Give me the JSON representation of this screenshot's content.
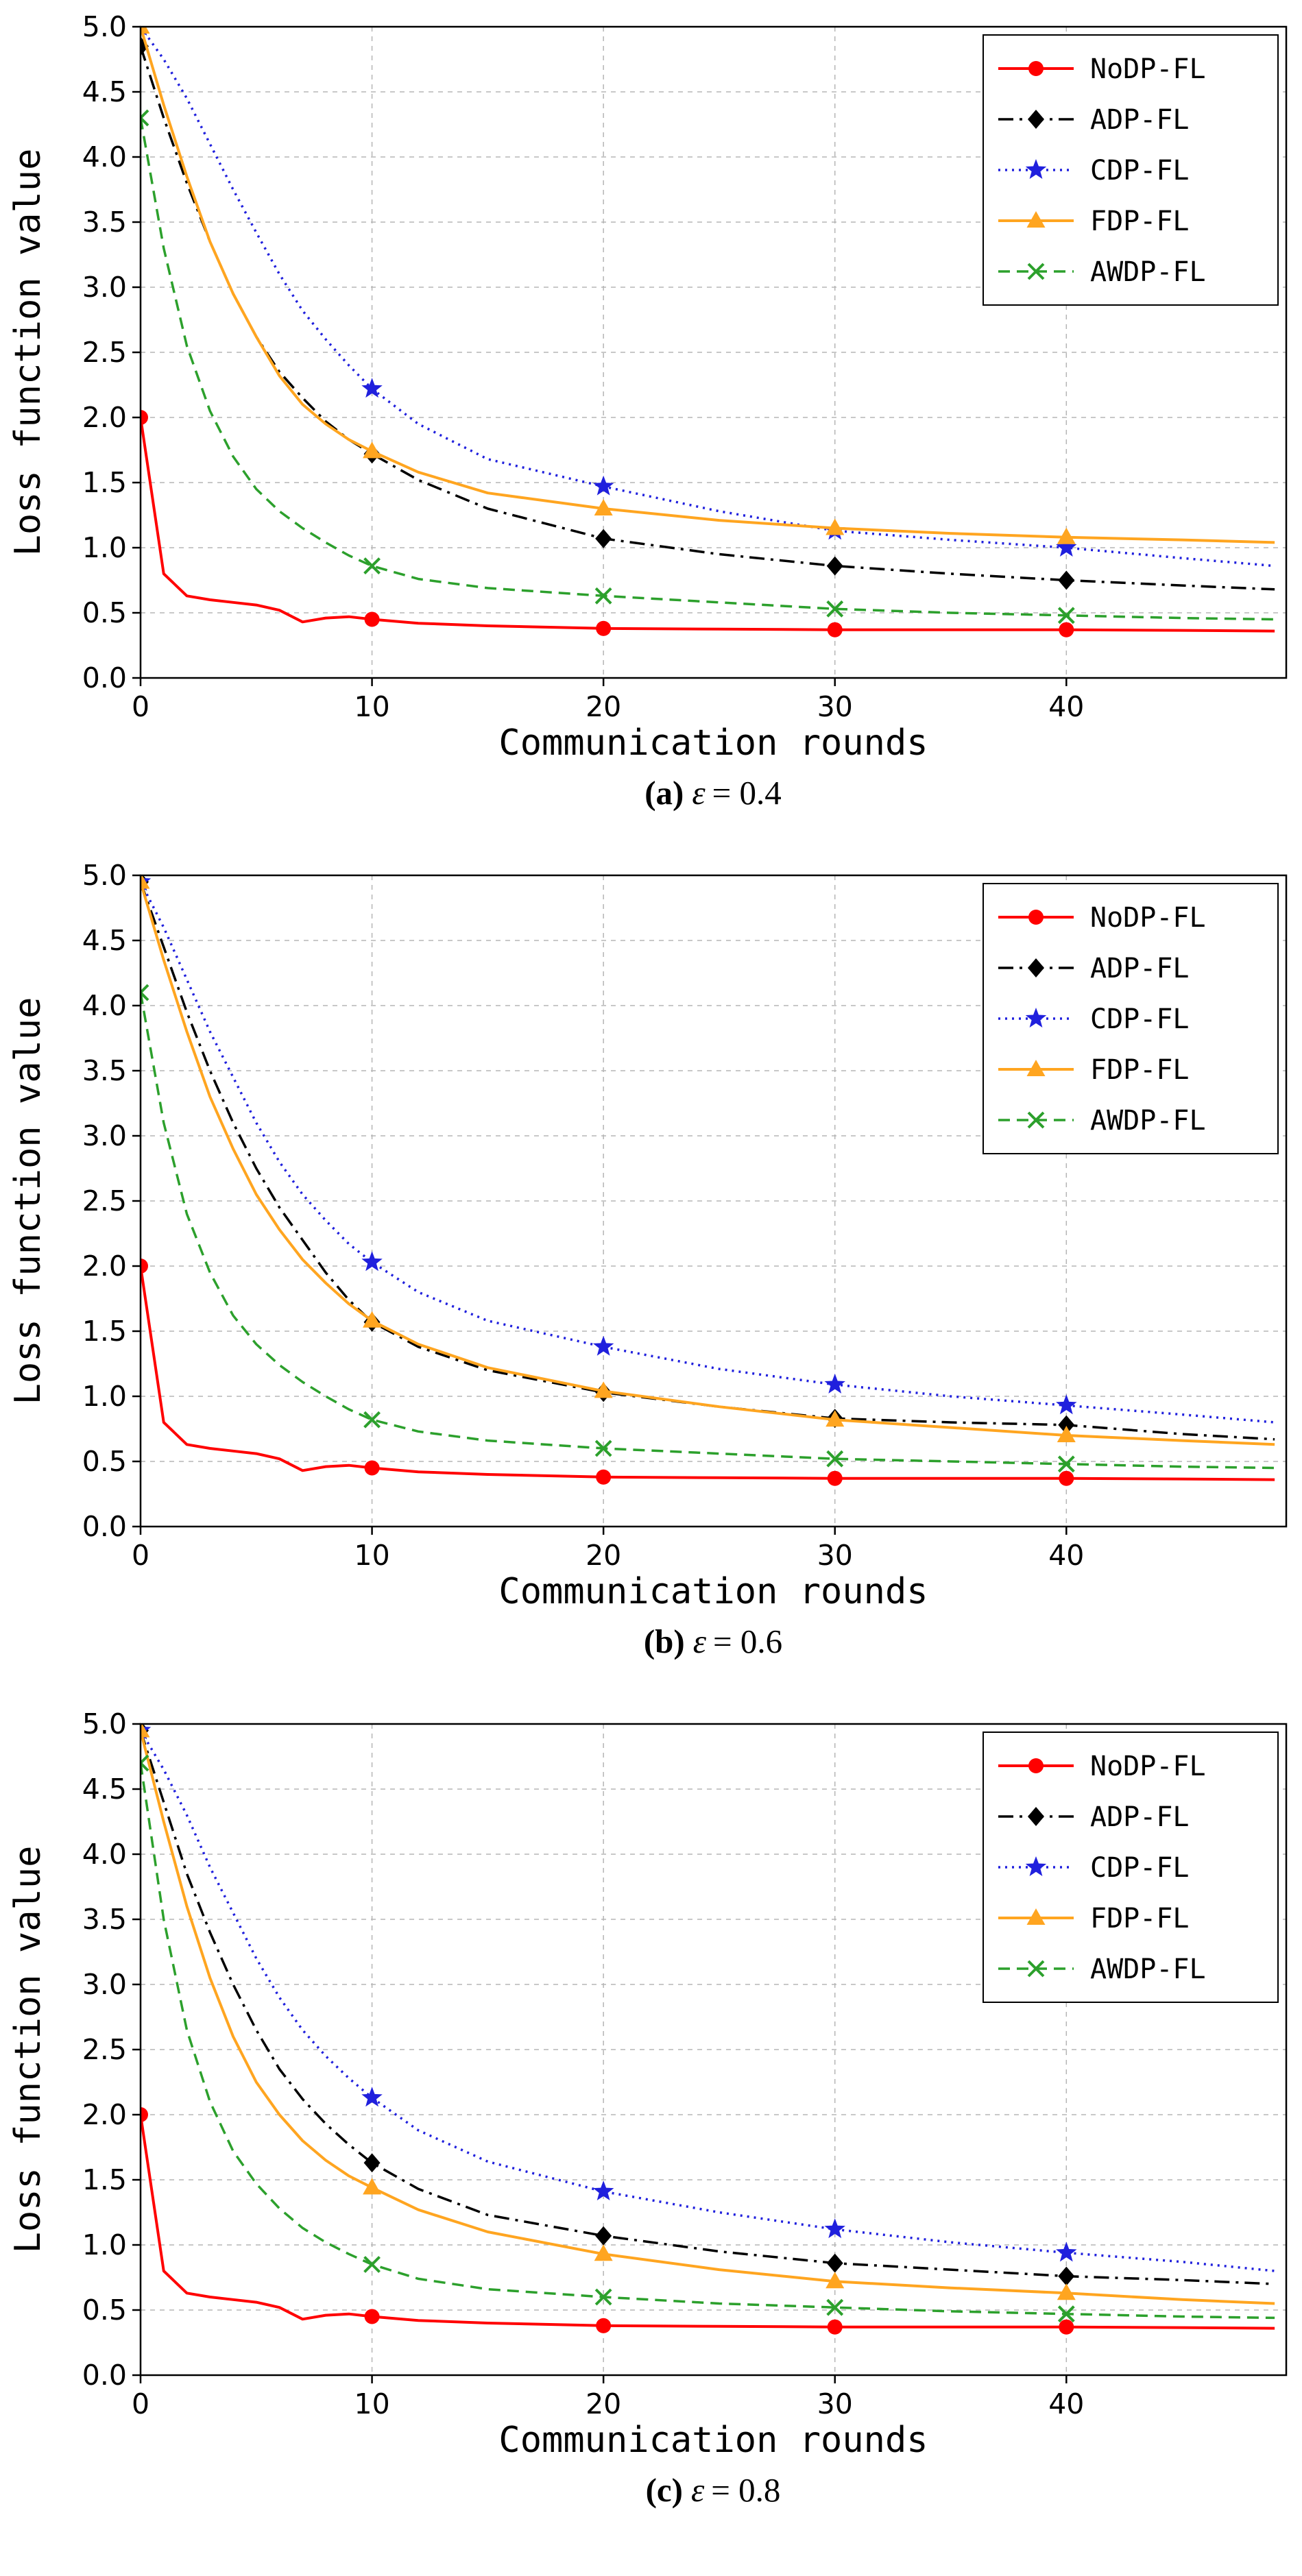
{
  "page": {
    "background": "#ffffff"
  },
  "chart_data": [
    {
      "type": "line",
      "caption_label": "(a)",
      "caption_symbol": "ε",
      "caption_eq": "= 0.4",
      "xlabel": "Communication rounds",
      "ylabel": "Loss function value",
      "xlim": [
        0,
        49.5
      ],
      "ylim": [
        0,
        5
      ],
      "xticks": [
        0,
        10,
        20,
        30,
        40
      ],
      "xtick_labels": [
        "0",
        "10",
        "20",
        "30",
        "40"
      ],
      "yticks": [
        0,
        0.5,
        1,
        1.5,
        2,
        2.5,
        3,
        3.5,
        4,
        4.5,
        5
      ],
      "ytick_labels": [
        "0.0",
        "0.5",
        "1.0",
        "1.5",
        "2.0",
        "2.5",
        "3.0",
        "3.5",
        "4.0",
        "4.5",
        "5.0"
      ],
      "grid": true,
      "grid_color": "#b5b5b5",
      "legend_position": "upper right",
      "marker_x": [
        0,
        10,
        20,
        30,
        40
      ],
      "x": [
        0,
        1,
        2,
        3,
        4,
        5,
        6,
        7,
        8,
        9,
        10,
        12,
        15,
        20,
        25,
        30,
        35,
        40,
        45,
        49
      ],
      "series": [
        {
          "name": "NoDP-FL",
          "color": "#ff0000",
          "linestyle": "solid",
          "marker": "circle",
          "values": [
            2.0,
            0.8,
            0.63,
            0.6,
            0.58,
            0.56,
            0.52,
            0.43,
            0.46,
            0.47,
            0.45,
            0.42,
            0.4,
            0.38,
            0.375,
            0.37,
            0.37,
            0.37,
            0.365,
            0.36
          ]
        },
        {
          "name": "ADP-FL",
          "color": "#000000",
          "linestyle": "dashdot",
          "marker": "diamond",
          "values": [
            4.85,
            4.3,
            3.8,
            3.35,
            2.95,
            2.62,
            2.35,
            2.15,
            1.97,
            1.83,
            1.72,
            1.52,
            1.3,
            1.07,
            0.95,
            0.86,
            0.8,
            0.75,
            0.71,
            0.68
          ]
        },
        {
          "name": "CDP-FL",
          "color": "#2020dd",
          "linestyle": "dotted",
          "marker": "star",
          "values": [
            5.0,
            4.75,
            4.45,
            4.1,
            3.75,
            3.42,
            3.1,
            2.82,
            2.6,
            2.4,
            2.22,
            1.95,
            1.68,
            1.47,
            1.28,
            1.13,
            1.06,
            1.0,
            0.92,
            0.86
          ]
        },
        {
          "name": "FDP-FL",
          "color": "#ffa520",
          "linestyle": "solid",
          "marker": "triangle",
          "values": [
            5.0,
            4.4,
            3.85,
            3.35,
            2.95,
            2.62,
            2.32,
            2.1,
            1.95,
            1.83,
            1.74,
            1.58,
            1.42,
            1.3,
            1.21,
            1.15,
            1.11,
            1.08,
            1.06,
            1.04
          ]
        },
        {
          "name": "AWDP-FL",
          "color": "#2ca02c",
          "linestyle": "dashed",
          "marker": "x",
          "values": [
            4.3,
            3.3,
            2.55,
            2.05,
            1.7,
            1.45,
            1.28,
            1.15,
            1.04,
            0.94,
            0.86,
            0.76,
            0.69,
            0.63,
            0.58,
            0.53,
            0.5,
            0.48,
            0.46,
            0.45
          ]
        }
      ]
    },
    {
      "type": "line",
      "caption_label": "(b)",
      "caption_symbol": "ε",
      "caption_eq": "= 0.6",
      "xlabel": "Communication rounds",
      "ylabel": "Loss function value",
      "xlim": [
        0,
        49.5
      ],
      "ylim": [
        0,
        5
      ],
      "xticks": [
        0,
        10,
        20,
        30,
        40
      ],
      "xtick_labels": [
        "0",
        "10",
        "20",
        "30",
        "40"
      ],
      "yticks": [
        0,
        0.5,
        1,
        1.5,
        2,
        2.5,
        3,
        3.5,
        4,
        4.5,
        5
      ],
      "ytick_labels": [
        "0.0",
        "0.5",
        "1.0",
        "1.5",
        "2.0",
        "2.5",
        "3.0",
        "3.5",
        "4.0",
        "4.5",
        "5.0"
      ],
      "grid": true,
      "grid_color": "#b5b5b5",
      "legend_position": "upper right",
      "marker_x": [
        0,
        10,
        20,
        30,
        40
      ],
      "x": [
        0,
        1,
        2,
        3,
        4,
        5,
        6,
        7,
        8,
        9,
        10,
        12,
        15,
        20,
        25,
        30,
        35,
        40,
        45,
        49
      ],
      "series": [
        {
          "name": "NoDP-FL",
          "color": "#ff0000",
          "linestyle": "solid",
          "marker": "circle",
          "values": [
            2.0,
            0.8,
            0.63,
            0.6,
            0.58,
            0.56,
            0.52,
            0.43,
            0.46,
            0.47,
            0.45,
            0.42,
            0.4,
            0.38,
            0.375,
            0.37,
            0.37,
            0.37,
            0.365,
            0.36
          ]
        },
        {
          "name": "ADP-FL",
          "color": "#000000",
          "linestyle": "dashdot",
          "marker": "diamond",
          "values": [
            4.95,
            4.45,
            3.95,
            3.5,
            3.1,
            2.75,
            2.45,
            2.2,
            1.95,
            1.74,
            1.57,
            1.38,
            1.2,
            1.03,
            0.92,
            0.83,
            0.8,
            0.78,
            0.71,
            0.67
          ]
        },
        {
          "name": "CDP-FL",
          "color": "#2020dd",
          "linestyle": "dotted",
          "marker": "star",
          "values": [
            4.95,
            4.6,
            4.2,
            3.8,
            3.45,
            3.1,
            2.8,
            2.55,
            2.35,
            2.17,
            2.03,
            1.8,
            1.58,
            1.38,
            1.21,
            1.09,
            1.0,
            0.93,
            0.86,
            0.8
          ]
        },
        {
          "name": "FDP-FL",
          "color": "#ffa520",
          "linestyle": "solid",
          "marker": "triangle",
          "values": [
            4.95,
            4.35,
            3.8,
            3.3,
            2.9,
            2.55,
            2.28,
            2.05,
            1.87,
            1.71,
            1.58,
            1.4,
            1.22,
            1.04,
            0.92,
            0.82,
            0.76,
            0.7,
            0.66,
            0.63
          ]
        },
        {
          "name": "AWDP-FL",
          "color": "#2ca02c",
          "linestyle": "dashed",
          "marker": "x",
          "values": [
            4.1,
            3.1,
            2.4,
            1.95,
            1.62,
            1.4,
            1.24,
            1.11,
            1.0,
            0.9,
            0.82,
            0.73,
            0.66,
            0.6,
            0.56,
            0.52,
            0.5,
            0.48,
            0.46,
            0.45
          ]
        }
      ]
    },
    {
      "type": "line",
      "caption_label": "(c)",
      "caption_symbol": "ε",
      "caption_eq": "= 0.8",
      "xlabel": "Communication rounds",
      "ylabel": "Loss function value",
      "xlim": [
        0,
        49.5
      ],
      "ylim": [
        0,
        5
      ],
      "xticks": [
        0,
        10,
        20,
        30,
        40
      ],
      "xtick_labels": [
        "0",
        "10",
        "20",
        "30",
        "40"
      ],
      "yticks": [
        0,
        0.5,
        1,
        1.5,
        2,
        2.5,
        3,
        3.5,
        4,
        4.5,
        5
      ],
      "ytick_labels": [
        "0.0",
        "0.5",
        "1.0",
        "1.5",
        "2.0",
        "2.5",
        "3.0",
        "3.5",
        "4.0",
        "4.5",
        "5.0"
      ],
      "grid": true,
      "grid_color": "#b5b5b5",
      "legend_position": "upper right",
      "marker_x": [
        0,
        10,
        20,
        30,
        40
      ],
      "x": [
        0,
        1,
        2,
        3,
        4,
        5,
        6,
        7,
        8,
        9,
        10,
        12,
        15,
        20,
        25,
        30,
        35,
        40,
        45,
        49
      ],
      "series": [
        {
          "name": "NoDP-FL",
          "color": "#ff0000",
          "linestyle": "solid",
          "marker": "circle",
          "values": [
            2.0,
            0.8,
            0.63,
            0.6,
            0.58,
            0.56,
            0.52,
            0.43,
            0.46,
            0.47,
            0.45,
            0.42,
            0.4,
            0.38,
            0.375,
            0.37,
            0.37,
            0.37,
            0.365,
            0.36
          ]
        },
        {
          "name": "ADP-FL",
          "color": "#000000",
          "linestyle": "dashdot",
          "marker": "diamond",
          "values": [
            4.95,
            4.4,
            3.85,
            3.4,
            3.0,
            2.65,
            2.35,
            2.12,
            1.93,
            1.77,
            1.63,
            1.43,
            1.23,
            1.07,
            0.95,
            0.86,
            0.81,
            0.76,
            0.73,
            0.7
          ]
        },
        {
          "name": "CDP-FL",
          "color": "#2020dd",
          "linestyle": "dotted",
          "marker": "star",
          "values": [
            4.95,
            4.65,
            4.3,
            3.9,
            3.55,
            3.2,
            2.9,
            2.65,
            2.45,
            2.28,
            2.13,
            1.88,
            1.64,
            1.41,
            1.25,
            1.12,
            1.02,
            0.94,
            0.87,
            0.8
          ]
        },
        {
          "name": "FDP-FL",
          "color": "#ffa520",
          "linestyle": "solid",
          "marker": "triangle",
          "values": [
            4.95,
            4.25,
            3.6,
            3.05,
            2.6,
            2.25,
            2.0,
            1.8,
            1.65,
            1.53,
            1.44,
            1.27,
            1.1,
            0.93,
            0.81,
            0.72,
            0.67,
            0.63,
            0.58,
            0.55
          ]
        },
        {
          "name": "AWDP-FL",
          "color": "#2ca02c",
          "linestyle": "dashed",
          "marker": "x",
          "values": [
            4.7,
            3.5,
            2.65,
            2.1,
            1.72,
            1.47,
            1.28,
            1.13,
            1.02,
            0.93,
            0.85,
            0.74,
            0.66,
            0.6,
            0.55,
            0.52,
            0.49,
            0.47,
            0.45,
            0.44
          ]
        }
      ]
    }
  ]
}
